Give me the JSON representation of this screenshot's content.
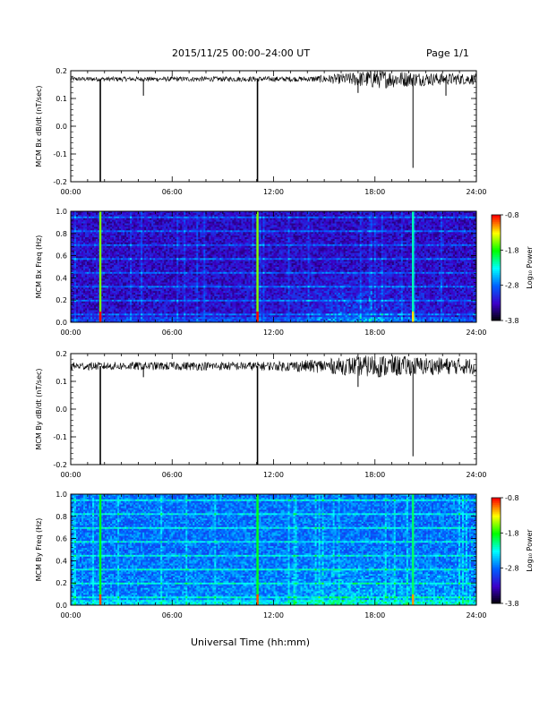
{
  "header": {
    "title": "2015/11/25  00:00–24:00 UT",
    "page": "Page 1/1"
  },
  "footer": {
    "xlabel": "Universal Time (hh:mm)"
  },
  "colorbar": {
    "label": "Log₁₀ Power",
    "ticks": [
      "-0.8",
      "-1.8",
      "-2.8",
      "-3.8"
    ],
    "colors": [
      "#ff0000",
      "#ffff00",
      "#00ff00",
      "#00ffff",
      "#0060ff",
      "#3c00c8",
      "#000000"
    ]
  },
  "chart_data": [
    {
      "type": "line",
      "ylabel": "MCM Bx dB/dt (nT/sec)",
      "ylim": [
        -0.2,
        0.2
      ],
      "yticks": [
        "0.2",
        "0.1",
        "0.0",
        "-0.1",
        "-0.2"
      ],
      "xlim_hours": [
        0,
        24
      ],
      "xticks": [
        "00:00",
        "06:00",
        "12:00",
        "18:00",
        "24:00"
      ],
      "baseline": 0.17,
      "noise_profile": [
        [
          0,
          0.005
        ],
        [
          14,
          0.006
        ],
        [
          16,
          0.012
        ],
        [
          18,
          0.022
        ],
        [
          21,
          0.015
        ],
        [
          24,
          0.012
        ]
      ],
      "spikes": [
        {
          "t": 1.75,
          "min": -0.2
        },
        {
          "t": 4.3,
          "min": 0.11
        },
        {
          "t": 11.05,
          "min": -0.2
        },
        {
          "t": 17.0,
          "min": 0.12
        },
        {
          "t": 20.25,
          "min": -0.15
        },
        {
          "t": 22.2,
          "min": 0.11
        }
      ]
    },
    {
      "type": "heatmap",
      "ylabel": "MCM Bx Freq (Hz)",
      "ylim": [
        0.0,
        1.0
      ],
      "yticks": [
        "1.0",
        "0.8",
        "0.6",
        "0.4",
        "0.2",
        "0.0"
      ],
      "xlim_hours": [
        0,
        24
      ],
      "xticks": [
        "00:00",
        "06:00",
        "12:00",
        "18:00",
        "24:00"
      ],
      "zlim": [
        -3.8,
        -0.8
      ],
      "background_level": 0.18,
      "bright_lines": [
        {
          "t": 1.75,
          "level": 0.75
        },
        {
          "t": 11.05,
          "level": 0.75
        },
        {
          "t": 20.25,
          "level": 0.55
        }
      ],
      "activity": [
        [
          0,
          0.0
        ],
        [
          13,
          0.05
        ],
        [
          16,
          0.3
        ],
        [
          18,
          0.25
        ],
        [
          21,
          0.1
        ],
        [
          24,
          0.05
        ]
      ]
    },
    {
      "type": "line",
      "ylabel": "MCM By dB/dt (nT/sec)",
      "ylim": [
        -0.2,
        0.2
      ],
      "yticks": [
        "0.2",
        "0.1",
        "0.0",
        "-0.1",
        "-0.2"
      ],
      "xlim_hours": [
        0,
        24
      ],
      "xticks": [
        "00:00",
        "06:00",
        "12:00",
        "18:00",
        "24:00"
      ],
      "baseline": 0.155,
      "noise_profile": [
        [
          0,
          0.009
        ],
        [
          12,
          0.01
        ],
        [
          15,
          0.016
        ],
        [
          18,
          0.026
        ],
        [
          21,
          0.02
        ],
        [
          24,
          0.018
        ]
      ],
      "spikes": [
        {
          "t": 1.75,
          "min": -0.2
        },
        {
          "t": 4.3,
          "min": 0.115
        },
        {
          "t": 11.05,
          "min": -0.2
        },
        {
          "t": 17.0,
          "min": 0.08
        },
        {
          "t": 20.25,
          "min": -0.17
        }
      ]
    },
    {
      "type": "heatmap",
      "ylabel": "MCM By Freq (Hz)",
      "ylim": [
        0.0,
        1.0
      ],
      "yticks": [
        "1.0",
        "0.8",
        "0.6",
        "0.4",
        "0.2",
        "0.0"
      ],
      "xlim_hours": [
        0,
        24
      ],
      "xticks": [
        "00:00",
        "06:00",
        "12:00",
        "18:00",
        "24:00"
      ],
      "zlim": [
        -3.8,
        -0.8
      ],
      "background_level": 0.35,
      "bright_lines": [
        {
          "t": 1.75,
          "level": 0.65
        },
        {
          "t": 11.05,
          "level": 0.65
        },
        {
          "t": 20.25,
          "level": 0.6
        }
      ],
      "activity": [
        [
          0,
          0.05
        ],
        [
          13,
          0.12
        ],
        [
          16,
          0.25
        ],
        [
          19,
          0.2
        ],
        [
          24,
          0.15
        ]
      ]
    }
  ]
}
